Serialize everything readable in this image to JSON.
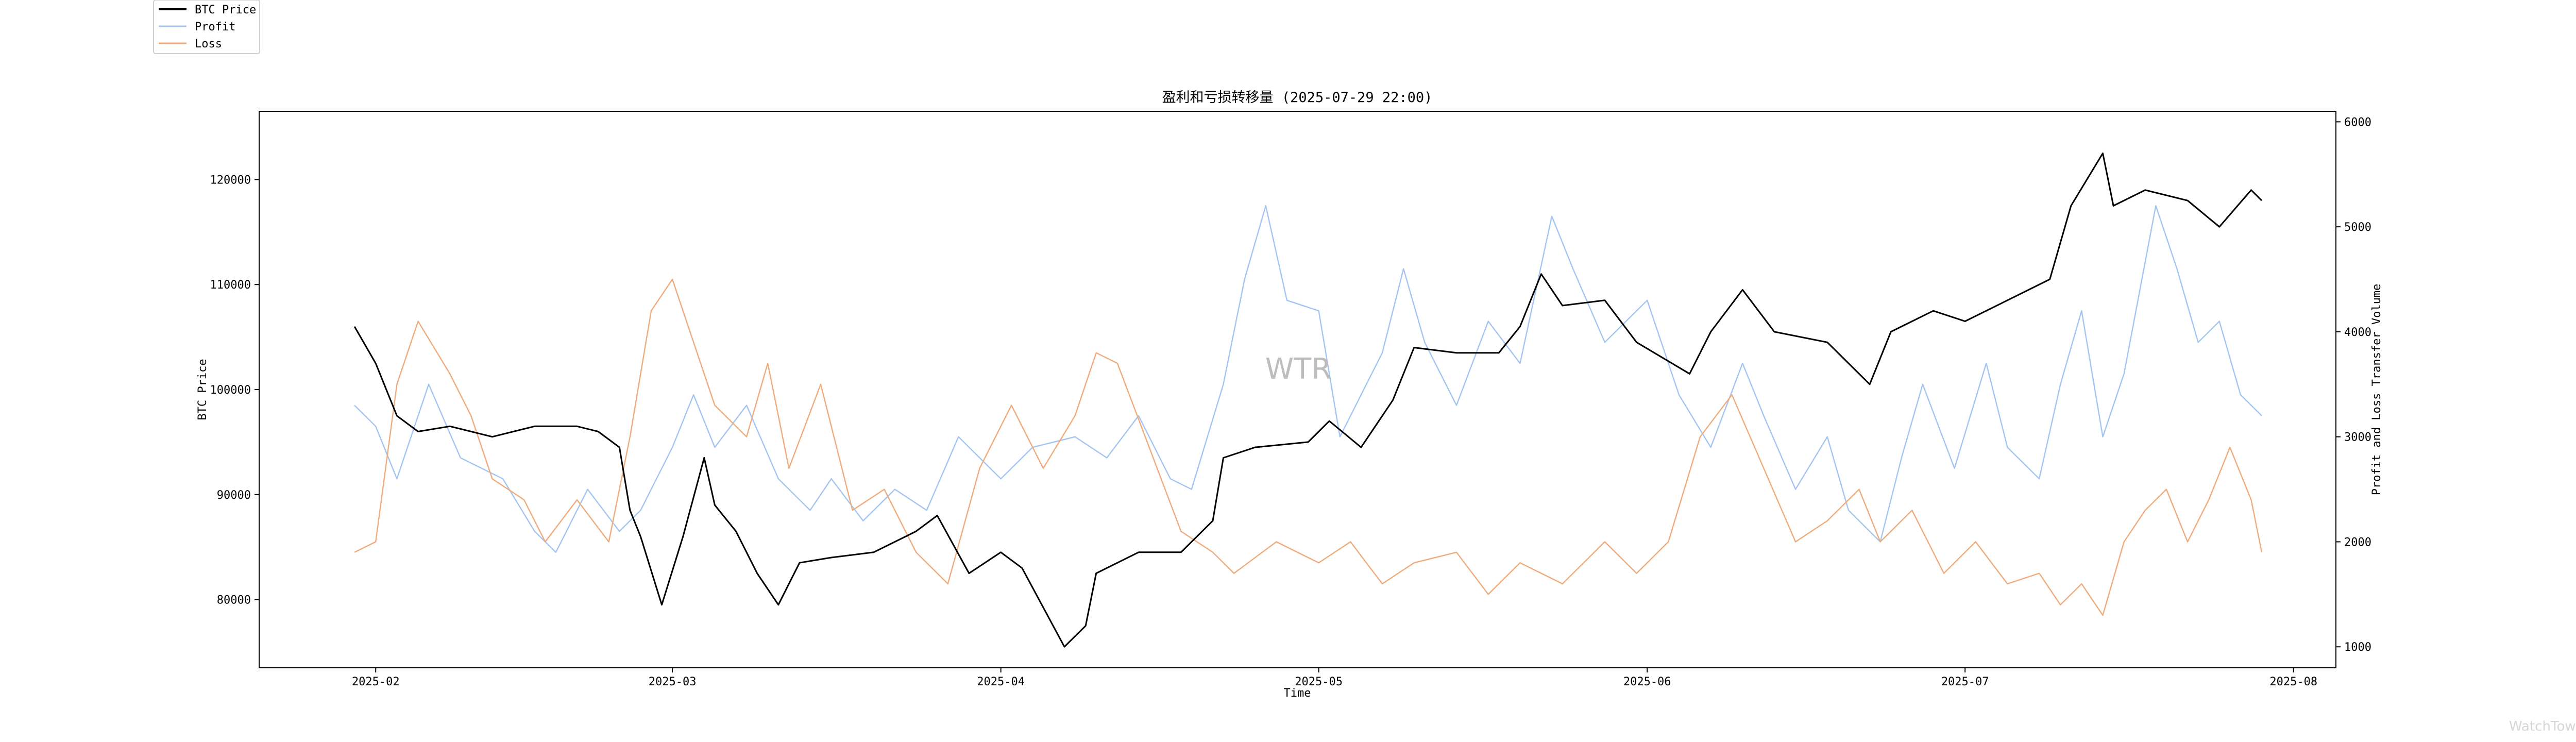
{
  "chart_data": {
    "type": "line",
    "title": "盈利和亏损转移量 (2025-07-29 22:00)",
    "xlabel": "Time",
    "ylabel_left": "BTC Price",
    "ylabel_right": "Profit and Loss Transfer Volume",
    "x_ticks": [
      "2025-02",
      "2025-03",
      "2025-04",
      "2025-05",
      "2025-06",
      "2025-07",
      "2025-08"
    ],
    "y_left_ticks": [
      80000,
      90000,
      100000,
      110000,
      120000
    ],
    "y_right_ticks": [
      1000,
      2000,
      3000,
      4000,
      5000,
      6000
    ],
    "y_left_range": [
      73500,
      126500
    ],
    "y_right_range": [
      800,
      6100
    ],
    "x_range": [
      "2025-01-21",
      "2025-08-05"
    ],
    "legend_position": "top-left",
    "grid": false,
    "watermark": "WTR",
    "series": [
      {
        "name": "BTC Price",
        "axis": "left",
        "color": "#000000",
        "points": [
          [
            "2025-01-30",
            106000
          ],
          [
            "2025-02-01",
            102500
          ],
          [
            "2025-02-03",
            97500
          ],
          [
            "2025-02-05",
            96000
          ],
          [
            "2025-02-08",
            96500
          ],
          [
            "2025-02-12",
            95500
          ],
          [
            "2025-02-16",
            96500
          ],
          [
            "2025-02-20",
            96500
          ],
          [
            "2025-02-22",
            96000
          ],
          [
            "2025-02-24",
            94500
          ],
          [
            "2025-02-25",
            88500
          ],
          [
            "2025-02-26",
            86000
          ],
          [
            "2025-02-28",
            79500
          ],
          [
            "2025-03-02",
            86000
          ],
          [
            "2025-03-04",
            93500
          ],
          [
            "2025-03-05",
            89000
          ],
          [
            "2025-03-07",
            86500
          ],
          [
            "2025-03-09",
            82500
          ],
          [
            "2025-03-11",
            79500
          ],
          [
            "2025-03-13",
            83500
          ],
          [
            "2025-03-16",
            84000
          ],
          [
            "2025-03-20",
            84500
          ],
          [
            "2025-03-24",
            86500
          ],
          [
            "2025-03-26",
            88000
          ],
          [
            "2025-03-29",
            82500
          ],
          [
            "2025-04-01",
            84500
          ],
          [
            "2025-04-03",
            83000
          ],
          [
            "2025-04-07",
            75500
          ],
          [
            "2025-04-09",
            77500
          ],
          [
            "2025-04-10",
            82500
          ],
          [
            "2025-04-14",
            84500
          ],
          [
            "2025-04-18",
            84500
          ],
          [
            "2025-04-21",
            87500
          ],
          [
            "2025-04-22",
            93500
          ],
          [
            "2025-04-25",
            94500
          ],
          [
            "2025-04-30",
            95000
          ],
          [
            "2025-05-02",
            97000
          ],
          [
            "2025-05-05",
            94500
          ],
          [
            "2025-05-08",
            99000
          ],
          [
            "2025-05-10",
            104000
          ],
          [
            "2025-05-14",
            103500
          ],
          [
            "2025-05-18",
            103500
          ],
          [
            "2025-05-20",
            106000
          ],
          [
            "2025-05-22",
            111000
          ],
          [
            "2025-05-24",
            108000
          ],
          [
            "2025-05-28",
            108500
          ],
          [
            "2025-05-31",
            104500
          ],
          [
            "2025-06-05",
            101500
          ],
          [
            "2025-06-07",
            105500
          ],
          [
            "2025-06-10",
            109500
          ],
          [
            "2025-06-13",
            105500
          ],
          [
            "2025-06-18",
            104500
          ],
          [
            "2025-06-22",
            100500
          ],
          [
            "2025-06-24",
            105500
          ],
          [
            "2025-06-28",
            107500
          ],
          [
            "2025-07-01",
            106500
          ],
          [
            "2025-07-05",
            108500
          ],
          [
            "2025-07-09",
            110500
          ],
          [
            "2025-07-11",
            117500
          ],
          [
            "2025-07-14",
            122500
          ],
          [
            "2025-07-15",
            117500
          ],
          [
            "2025-07-18",
            119000
          ],
          [
            "2025-07-22",
            118000
          ],
          [
            "2025-07-25",
            115500
          ],
          [
            "2025-07-28",
            119000
          ],
          [
            "2025-07-29",
            118000
          ]
        ]
      },
      {
        "name": "Profit",
        "axis": "right",
        "color": "#a4c4f2",
        "points": [
          [
            "2025-01-30",
            3300
          ],
          [
            "2025-02-01",
            3100
          ],
          [
            "2025-02-03",
            2600
          ],
          [
            "2025-02-06",
            3500
          ],
          [
            "2025-02-09",
            2800
          ],
          [
            "2025-02-13",
            2600
          ],
          [
            "2025-02-16",
            2100
          ],
          [
            "2025-02-18",
            1900
          ],
          [
            "2025-02-21",
            2500
          ],
          [
            "2025-02-24",
            2100
          ],
          [
            "2025-02-26",
            2300
          ],
          [
            "2025-03-01",
            2900
          ],
          [
            "2025-03-03",
            3400
          ],
          [
            "2025-03-05",
            2900
          ],
          [
            "2025-03-08",
            3300
          ],
          [
            "2025-03-11",
            2600
          ],
          [
            "2025-03-14",
            2300
          ],
          [
            "2025-03-16",
            2600
          ],
          [
            "2025-03-19",
            2200
          ],
          [
            "2025-03-22",
            2500
          ],
          [
            "2025-03-25",
            2300
          ],
          [
            "2025-03-28",
            3000
          ],
          [
            "2025-04-01",
            2600
          ],
          [
            "2025-04-04",
            2900
          ],
          [
            "2025-04-08",
            3000
          ],
          [
            "2025-04-11",
            2800
          ],
          [
            "2025-04-14",
            3200
          ],
          [
            "2025-04-17",
            2600
          ],
          [
            "2025-04-19",
            2500
          ],
          [
            "2025-04-22",
            3500
          ],
          [
            "2025-04-24",
            4500
          ],
          [
            "2025-04-26",
            5200
          ],
          [
            "2025-04-28",
            4300
          ],
          [
            "2025-05-01",
            4200
          ],
          [
            "2025-05-03",
            3000
          ],
          [
            "2025-05-07",
            3800
          ],
          [
            "2025-05-09",
            4600
          ],
          [
            "2025-05-11",
            3900
          ],
          [
            "2025-05-14",
            3300
          ],
          [
            "2025-05-17",
            4100
          ],
          [
            "2025-05-20",
            3700
          ],
          [
            "2025-05-23",
            5100
          ],
          [
            "2025-05-25",
            4600
          ],
          [
            "2025-05-28",
            3900
          ],
          [
            "2025-06-01",
            4300
          ],
          [
            "2025-06-04",
            3400
          ],
          [
            "2025-06-07",
            2900
          ],
          [
            "2025-06-10",
            3700
          ],
          [
            "2025-06-12",
            3200
          ],
          [
            "2025-06-15",
            2500
          ],
          [
            "2025-06-18",
            3000
          ],
          [
            "2025-06-20",
            2300
          ],
          [
            "2025-06-23",
            2000
          ],
          [
            "2025-06-25",
            2800
          ],
          [
            "2025-06-27",
            3500
          ],
          [
            "2025-06-30",
            2700
          ],
          [
            "2025-07-03",
            3700
          ],
          [
            "2025-07-05",
            2900
          ],
          [
            "2025-07-08",
            2600
          ],
          [
            "2025-07-10",
            3500
          ],
          [
            "2025-07-12",
            4200
          ],
          [
            "2025-07-14",
            3000
          ],
          [
            "2025-07-16",
            3600
          ],
          [
            "2025-07-19",
            5200
          ],
          [
            "2025-07-21",
            4600
          ],
          [
            "2025-07-23",
            3900
          ],
          [
            "2025-07-25",
            4100
          ],
          [
            "2025-07-27",
            3400
          ],
          [
            "2025-07-29",
            3200
          ]
        ]
      },
      {
        "name": "Loss",
        "axis": "right",
        "color": "#efab7c",
        "points": [
          [
            "2025-01-30",
            1900
          ],
          [
            "2025-02-01",
            2000
          ],
          [
            "2025-02-03",
            3500
          ],
          [
            "2025-02-05",
            4100
          ],
          [
            "2025-02-08",
            3600
          ],
          [
            "2025-02-10",
            3200
          ],
          [
            "2025-02-12",
            2600
          ],
          [
            "2025-02-15",
            2400
          ],
          [
            "2025-02-17",
            2000
          ],
          [
            "2025-02-20",
            2400
          ],
          [
            "2025-02-23",
            2000
          ],
          [
            "2025-02-25",
            3000
          ],
          [
            "2025-02-27",
            4200
          ],
          [
            "2025-03-01",
            4500
          ],
          [
            "2025-03-03",
            3900
          ],
          [
            "2025-03-05",
            3300
          ],
          [
            "2025-03-08",
            3000
          ],
          [
            "2025-03-10",
            3700
          ],
          [
            "2025-03-12",
            2700
          ],
          [
            "2025-03-15",
            3500
          ],
          [
            "2025-03-18",
            2300
          ],
          [
            "2025-03-21",
            2500
          ],
          [
            "2025-03-24",
            1900
          ],
          [
            "2025-03-27",
            1600
          ],
          [
            "2025-03-30",
            2700
          ],
          [
            "2025-04-02",
            3300
          ],
          [
            "2025-04-05",
            2700
          ],
          [
            "2025-04-08",
            3200
          ],
          [
            "2025-04-10",
            3800
          ],
          [
            "2025-04-12",
            3700
          ],
          [
            "2025-04-15",
            2900
          ],
          [
            "2025-04-18",
            2100
          ],
          [
            "2025-04-21",
            1900
          ],
          [
            "2025-04-23",
            1700
          ],
          [
            "2025-04-27",
            2000
          ],
          [
            "2025-05-01",
            1800
          ],
          [
            "2025-05-04",
            2000
          ],
          [
            "2025-05-07",
            1600
          ],
          [
            "2025-05-10",
            1800
          ],
          [
            "2025-05-14",
            1900
          ],
          [
            "2025-05-17",
            1500
          ],
          [
            "2025-05-20",
            1800
          ],
          [
            "2025-05-24",
            1600
          ],
          [
            "2025-05-28",
            2000
          ],
          [
            "2025-05-31",
            1700
          ],
          [
            "2025-06-03",
            2000
          ],
          [
            "2025-06-06",
            3000
          ],
          [
            "2025-06-09",
            3400
          ],
          [
            "2025-06-12",
            2700
          ],
          [
            "2025-06-15",
            2000
          ],
          [
            "2025-06-18",
            2200
          ],
          [
            "2025-06-21",
            2500
          ],
          [
            "2025-06-23",
            2000
          ],
          [
            "2025-06-26",
            2300
          ],
          [
            "2025-06-29",
            1700
          ],
          [
            "2025-07-02",
            2000
          ],
          [
            "2025-07-05",
            1600
          ],
          [
            "2025-07-08",
            1700
          ],
          [
            "2025-07-10",
            1400
          ],
          [
            "2025-07-12",
            1600
          ],
          [
            "2025-07-14",
            1300
          ],
          [
            "2025-07-16",
            2000
          ],
          [
            "2025-07-18",
            2300
          ],
          [
            "2025-07-20",
            2500
          ],
          [
            "2025-07-22",
            2000
          ],
          [
            "2025-07-24",
            2400
          ],
          [
            "2025-07-26",
            2900
          ],
          [
            "2025-07-28",
            2400
          ],
          [
            "2025-07-29",
            1900
          ]
        ]
      }
    ]
  },
  "watermark_corner": "WatchTower"
}
